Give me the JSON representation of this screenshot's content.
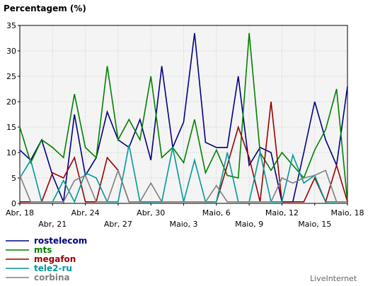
{
  "chart_data": {
    "type": "line",
    "title": "Percentagem (%)",
    "credit": "LiveInternet",
    "ylim": [
      0,
      35
    ],
    "y_ticks": [
      0,
      5,
      10,
      15,
      20,
      25,
      30,
      35
    ],
    "grid": true,
    "legend_position": "bottom-left",
    "x_tick_labels": [
      {
        "label": "Abr, 18",
        "x": 0,
        "row": 1
      },
      {
        "label": "Abr, 21",
        "x": 3,
        "row": 2
      },
      {
        "label": "Abr, 24",
        "x": 6,
        "row": 1
      },
      {
        "label": "Abr, 27",
        "x": 9,
        "row": 2
      },
      {
        "label": "Abr, 30",
        "x": 12,
        "row": 1
      },
      {
        "label": "Maio, 3",
        "x": 15,
        "row": 2
      },
      {
        "label": "Maio, 6",
        "x": 18,
        "row": 1
      },
      {
        "label": "Maio, 9",
        "x": 21,
        "row": 2
      },
      {
        "label": "Maio, 12",
        "x": 24,
        "row": 1
      },
      {
        "label": "Maio, 15",
        "x": 27,
        "row": 2
      },
      {
        "label": "Maio, 18",
        "x": 30,
        "row": 1
      }
    ],
    "series": [
      {
        "name": "rostelecom",
        "color": "#000080",
        "values": [
          10.5,
          8.5,
          12.5,
          5.5,
          0.3,
          17.5,
          5.5,
          9,
          18,
          12.5,
          11,
          16.5,
          8.5,
          27,
          11,
          16,
          33.5,
          12,
          11,
          11,
          25,
          7.5,
          11,
          10,
          0.3,
          0.3,
          10,
          20,
          12.5,
          7.5,
          23
        ]
      },
      {
        "name": "mts",
        "color": "#008000",
        "values": [
          15,
          8,
          12.5,
          11,
          9,
          21.5,
          11,
          9,
          27,
          12.5,
          16.5,
          12.5,
          25,
          9,
          11,
          8,
          16.5,
          6,
          10.5,
          5.5,
          5,
          33.5,
          10,
          6.5,
          10,
          7.5,
          5,
          10.5,
          14.5,
          22.5,
          0.3
        ]
      },
      {
        "name": "megafon",
        "color": "#990000",
        "values": [
          0.3,
          0.3,
          0.3,
          6,
          5,
          9,
          0.3,
          0.3,
          9,
          6.5,
          0.3,
          0.3,
          0.3,
          0.3,
          0.3,
          0.3,
          0.3,
          0.3,
          0.3,
          7.5,
          15,
          9,
          0.3,
          20,
          0.3,
          0.3,
          0.3,
          5,
          0.3,
          7.5,
          0.3
        ]
      },
      {
        "name": "tele2-ru",
        "color": "#009999",
        "values": [
          5,
          8.5,
          0.3,
          0.3,
          4.5,
          0.3,
          6,
          5,
          0.3,
          0.3,
          11.5,
          0.3,
          0.3,
          0.3,
          11,
          0.3,
          8.5,
          0.3,
          0.3,
          10,
          0.3,
          0.3,
          10,
          0.3,
          0.3,
          9.5,
          4,
          5.5,
          0.3,
          0.3,
          0.3
        ]
      },
      {
        "name": "corbina",
        "color": "#808080",
        "values": [
          5.5,
          0.3,
          0.3,
          0.3,
          0.3,
          4.5,
          5.5,
          0.3,
          0.3,
          6.5,
          0.3,
          0.3,
          4,
          0.3,
          0.3,
          0.3,
          0.3,
          0.3,
          3.5,
          0.3,
          0.3,
          0.3,
          0.3,
          0.3,
          5,
          4,
          5,
          5.5,
          6.5,
          0.3,
          0.3
        ]
      }
    ]
  }
}
